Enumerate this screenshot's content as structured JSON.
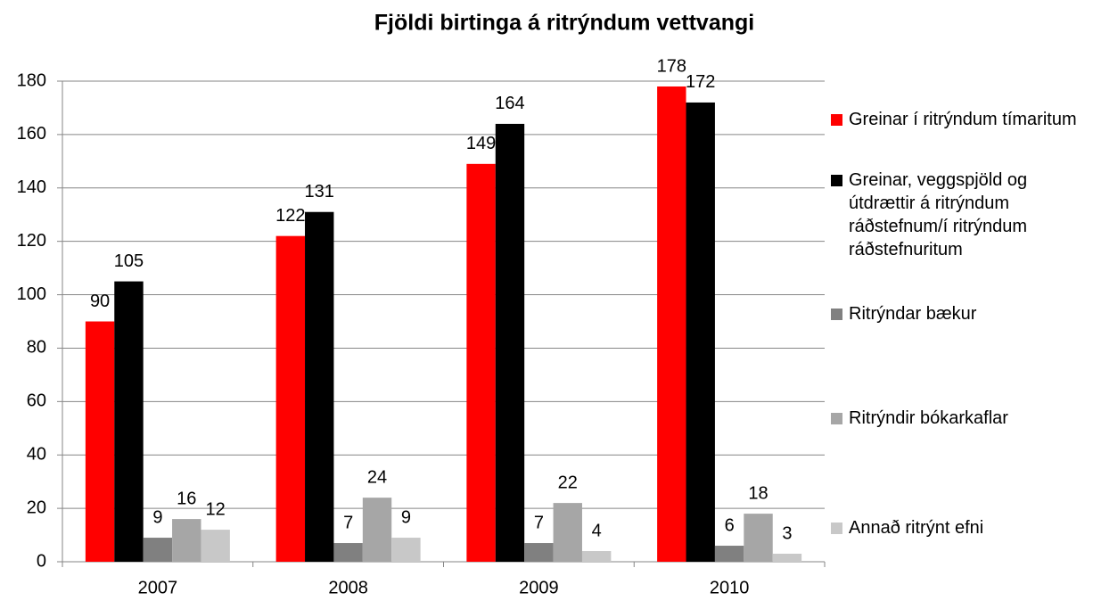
{
  "chart_data": {
    "type": "bar",
    "title": "Fjöldi birtinga á ritrýndum vettvangi",
    "categories": [
      "2007",
      "2008",
      "2009",
      "2010"
    ],
    "series": [
      {
        "name": "Greinar í ritrýndum tímaritum",
        "color": "#ff0000",
        "values": [
          90,
          122,
          149,
          178
        ]
      },
      {
        "name": "Greinar, veggspjöld og útdrættir á ritrýndum ráðstefnum/í ritrýndum ráðstefnuritum",
        "color": "#000000",
        "values": [
          105,
          131,
          164,
          172
        ]
      },
      {
        "name": "Ritrýndar bækur",
        "color": "#808080",
        "values": [
          9,
          7,
          7,
          6
        ]
      },
      {
        "name": "Ritrýndir bókarkaflar",
        "color": "#a6a6a6",
        "values": [
          16,
          24,
          22,
          18
        ]
      },
      {
        "name": "Annað ritrýnt efni",
        "color": "#c8c8c8",
        "values": [
          12,
          9,
          4,
          3
        ]
      }
    ],
    "ylim": [
      0,
      180
    ],
    "yticks": [
      0,
      20,
      40,
      60,
      80,
      100,
      120,
      140,
      160,
      180
    ],
    "grid": true,
    "legend": "right"
  }
}
